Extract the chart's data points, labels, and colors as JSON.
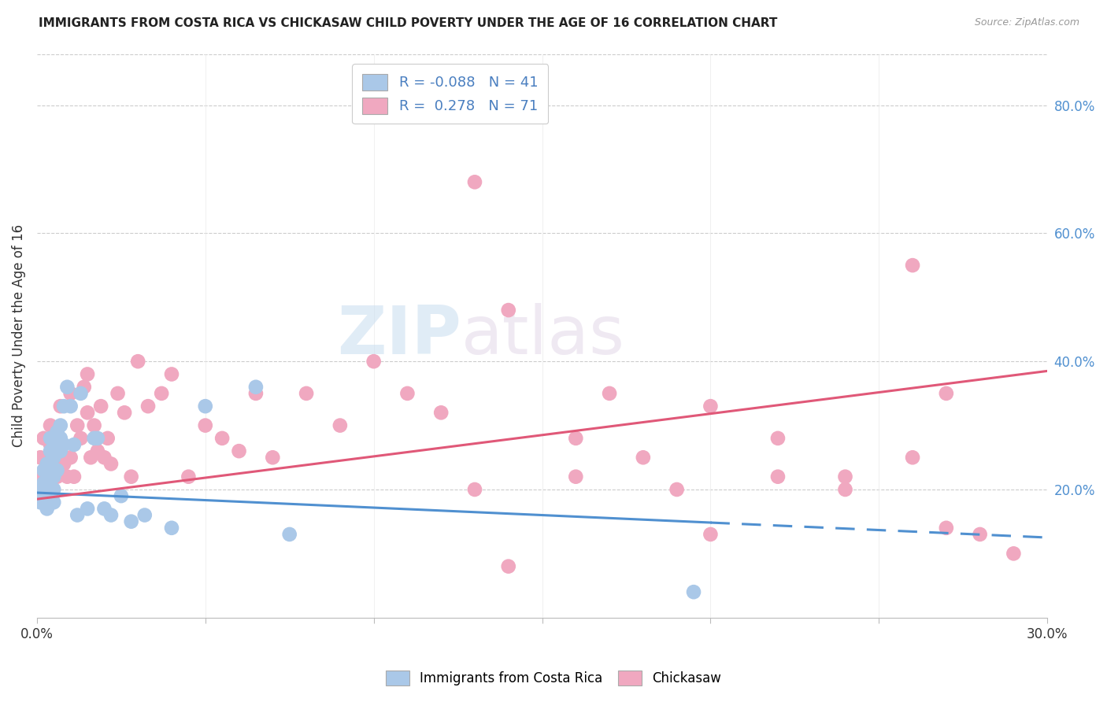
{
  "title": "IMMIGRANTS FROM COSTA RICA VS CHICKASAW CHILD POVERTY UNDER THE AGE OF 16 CORRELATION CHART",
  "source": "Source: ZipAtlas.com",
  "ylabel": "Child Poverty Under the Age of 16",
  "legend_blue_label": "Immigrants from Costa Rica",
  "legend_pink_label": "Chickasaw",
  "r_blue": -0.088,
  "n_blue": 41,
  "r_pink": 0.278,
  "n_pink": 71,
  "blue_dot_color": "#aac8e8",
  "pink_dot_color": "#f0a8c0",
  "blue_line_color": "#5090d0",
  "pink_line_color": "#e05878",
  "watermark_zip": "ZIP",
  "watermark_atlas": "atlas",
  "xlim": [
    0.0,
    0.3
  ],
  "ylim": [
    0.0,
    0.88
  ],
  "blue_line_solid_end": 0.2,
  "blue_line_x0": 0.0,
  "blue_line_y0": 0.195,
  "blue_line_x1": 0.3,
  "blue_line_y1": 0.125,
  "pink_line_x0": 0.0,
  "pink_line_y0": 0.185,
  "pink_line_x1": 0.3,
  "pink_line_y1": 0.385,
  "blue_scatter_x": [
    0.001,
    0.001,
    0.002,
    0.002,
    0.002,
    0.003,
    0.003,
    0.003,
    0.004,
    0.004,
    0.004,
    0.005,
    0.005,
    0.005,
    0.005,
    0.006,
    0.006,
    0.006,
    0.007,
    0.007,
    0.007,
    0.008,
    0.008,
    0.009,
    0.01,
    0.011,
    0.012,
    0.013,
    0.015,
    0.017,
    0.018,
    0.02,
    0.022,
    0.025,
    0.028,
    0.032,
    0.04,
    0.05,
    0.065,
    0.075,
    0.195
  ],
  "blue_scatter_y": [
    0.18,
    0.2,
    0.19,
    0.21,
    0.23,
    0.17,
    0.2,
    0.24,
    0.22,
    0.26,
    0.28,
    0.18,
    0.2,
    0.22,
    0.25,
    0.23,
    0.27,
    0.29,
    0.26,
    0.28,
    0.3,
    0.27,
    0.33,
    0.36,
    0.33,
    0.27,
    0.16,
    0.35,
    0.17,
    0.28,
    0.28,
    0.17,
    0.16,
    0.19,
    0.15,
    0.16,
    0.14,
    0.33,
    0.36,
    0.13,
    0.04
  ],
  "pink_scatter_x": [
    0.001,
    0.001,
    0.002,
    0.002,
    0.003,
    0.003,
    0.004,
    0.004,
    0.004,
    0.005,
    0.005,
    0.006,
    0.006,
    0.007,
    0.007,
    0.008,
    0.009,
    0.01,
    0.01,
    0.011,
    0.012,
    0.013,
    0.014,
    0.015,
    0.015,
    0.016,
    0.017,
    0.018,
    0.019,
    0.02,
    0.021,
    0.022,
    0.024,
    0.026,
    0.028,
    0.03,
    0.033,
    0.037,
    0.04,
    0.045,
    0.05,
    0.055,
    0.06,
    0.065,
    0.07,
    0.08,
    0.09,
    0.1,
    0.11,
    0.12,
    0.13,
    0.14,
    0.16,
    0.17,
    0.18,
    0.2,
    0.22,
    0.24,
    0.26,
    0.27,
    0.13,
    0.16,
    0.2,
    0.22,
    0.24,
    0.26,
    0.27,
    0.28,
    0.29,
    0.19,
    0.14
  ],
  "pink_scatter_y": [
    0.22,
    0.25,
    0.19,
    0.28,
    0.21,
    0.24,
    0.2,
    0.27,
    0.3,
    0.23,
    0.26,
    0.22,
    0.28,
    0.25,
    0.33,
    0.24,
    0.22,
    0.25,
    0.35,
    0.22,
    0.3,
    0.28,
    0.36,
    0.32,
    0.38,
    0.25,
    0.3,
    0.26,
    0.33,
    0.25,
    0.28,
    0.24,
    0.35,
    0.32,
    0.22,
    0.4,
    0.33,
    0.35,
    0.38,
    0.22,
    0.3,
    0.28,
    0.26,
    0.35,
    0.25,
    0.35,
    0.3,
    0.4,
    0.35,
    0.32,
    0.68,
    0.48,
    0.22,
    0.35,
    0.25,
    0.33,
    0.28,
    0.22,
    0.55,
    0.35,
    0.2,
    0.28,
    0.13,
    0.22,
    0.2,
    0.25,
    0.14,
    0.13,
    0.1,
    0.2,
    0.08
  ]
}
